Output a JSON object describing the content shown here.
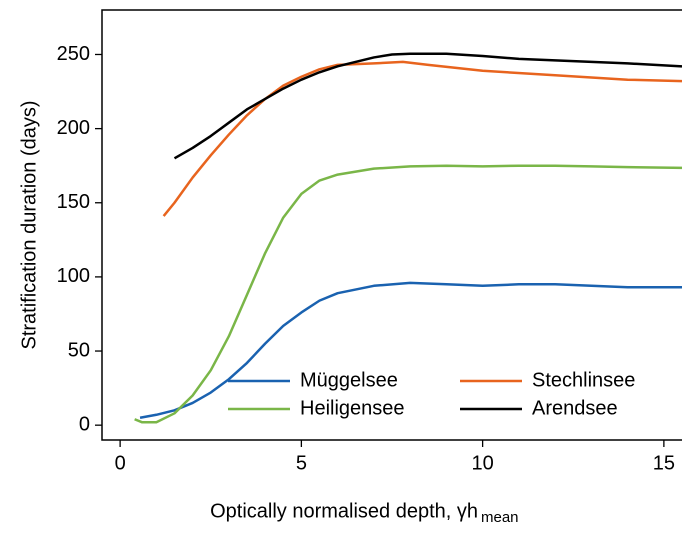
{
  "chart_data": {
    "type": "line",
    "xlabel": "Optically normalised depth, γh",
    "xlabel_subscript": "mean",
    "ylabel": "Stratification duration (days)",
    "xlim": [
      -0.5,
      15.5
    ],
    "ylim": [
      -10,
      280
    ],
    "xticks": [
      0,
      5,
      10,
      15
    ],
    "yticks": [
      0,
      50,
      100,
      150,
      200,
      250
    ],
    "legend": "lower right",
    "series": [
      {
        "name": "Müggelsee",
        "color": "#1a62b0",
        "x": [
          0.55,
          1,
          1.5,
          2,
          2.5,
          3,
          3.5,
          4,
          4.5,
          5,
          5.5,
          6,
          7,
          8,
          9,
          10,
          11,
          12,
          13,
          14,
          15.5
        ],
        "values": [
          5,
          7,
          10,
          15,
          22,
          31,
          42,
          55,
          67,
          76,
          84,
          89,
          94,
          96,
          95,
          94,
          95,
          95,
          94,
          93,
          93
        ]
      },
      {
        "name": "Heiligensee",
        "color": "#7ab648",
        "x": [
          0.4,
          0.6,
          1,
          1.5,
          2,
          2.5,
          3,
          3.5,
          4,
          4.5,
          5,
          5.5,
          6,
          7,
          8,
          9,
          10,
          11,
          12,
          13,
          14,
          15.5
        ],
        "values": [
          4,
          2,
          2,
          8,
          20,
          37,
          60,
          88,
          116,
          140,
          156,
          165,
          169,
          173,
          174.5,
          175,
          174.5,
          175,
          175,
          174.5,
          174,
          173.5
        ]
      },
      {
        "name": "Stechlinsee",
        "color": "#e8641e",
        "x": [
          1.2,
          1.5,
          2,
          2.5,
          3,
          3.5,
          4,
          4.5,
          5,
          5.5,
          6,
          7,
          7.8,
          8.5,
          10,
          12,
          14,
          15.5
        ],
        "values": [
          141,
          150,
          167,
          182,
          196,
          209,
          220,
          229,
          235,
          240,
          243,
          244,
          245,
          243,
          239,
          236,
          233,
          232
        ]
      },
      {
        "name": "Arendsee",
        "color": "#000000",
        "x": [
          1.5,
          2,
          2.5,
          3,
          3.5,
          4,
          4.5,
          5,
          5.5,
          6,
          7,
          7.5,
          8,
          9,
          10,
          11,
          12,
          13,
          14,
          15.5
        ],
        "values": [
          180,
          187,
          195,
          204,
          213,
          220,
          227,
          233,
          238,
          242,
          248,
          250,
          250.5,
          250.5,
          249,
          247,
          246,
          245,
          244,
          242
        ]
      }
    ]
  }
}
